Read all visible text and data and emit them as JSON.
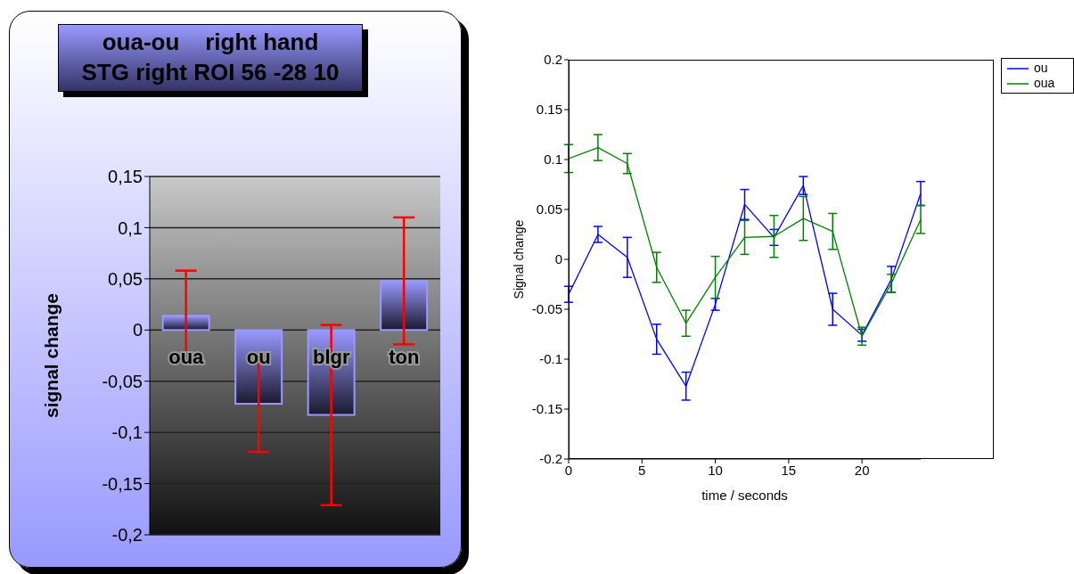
{
  "chart_data": [
    {
      "type": "bar",
      "title": "oua-ou    right hand",
      "subtitle": "STG right ROI 56 -28 10",
      "ylabel": "signal change",
      "categories": [
        "oua",
        "ou",
        "blgr",
        "ton"
      ],
      "values": [
        0.014,
        -0.072,
        -0.083,
        0.048
      ],
      "errors": [
        0.044,
        0.047,
        0.088,
        0.062
      ],
      "color": "#9999ff",
      "ylim": [
        -0.2,
        0.15
      ],
      "yticks": [
        {
          "value": -0.2,
          "label": "-0,2"
        },
        {
          "value": -0.15,
          "label": "-0,15"
        },
        {
          "value": -0.1,
          "label": "-0,1"
        },
        {
          "value": -0.05,
          "label": "-0,05"
        },
        {
          "value": 0,
          "label": "0"
        },
        {
          "value": 0.05,
          "label": "0,05"
        },
        {
          "value": 0.1,
          "label": "0,1"
        },
        {
          "value": 0.15,
          "label": "0,15"
        }
      ],
      "grid": "y",
      "legend": false
    },
    {
      "type": "line",
      "xlabel": "time / seconds",
      "ylabel": "Signal change",
      "x": [
        0,
        2,
        4,
        6,
        8,
        10,
        12,
        14,
        16,
        18,
        20,
        22,
        24
      ],
      "series": [
        {
          "name": "ou",
          "color": "#0000ff",
          "values": [
            -0.035,
            0.025,
            0.002,
            -0.08,
            -0.127,
            -0.045,
            0.055,
            0.022,
            0.074,
            -0.05,
            -0.076,
            -0.02,
            0.066
          ],
          "errors": [
            0.008,
            0.008,
            0.02,
            0.015,
            0.014,
            0.006,
            0.015,
            0.008,
            0.009,
            0.016,
            0.006,
            0.013,
            0.012
          ]
        },
        {
          "name": "oua",
          "color": "#008000",
          "values": [
            0.101,
            0.112,
            0.096,
            -0.008,
            -0.064,
            -0.018,
            0.022,
            0.023,
            0.041,
            0.028,
            -0.077,
            -0.024,
            0.04
          ],
          "errors": [
            0.014,
            0.013,
            0.01,
            0.015,
            0.013,
            0.021,
            0.017,
            0.021,
            0.022,
            0.018,
            0.009,
            0.009,
            0.014
          ]
        }
      ],
      "xlim": [
        0,
        24
      ],
      "xticks": [
        0,
        5,
        10,
        15,
        20
      ],
      "ylim": [
        -0.2,
        0.2
      ],
      "yticks": [
        -0.2,
        -0.15,
        -0.1,
        -0.05,
        0,
        0.05,
        0.1,
        0.15,
        0.2
      ],
      "grid": false,
      "legend": "top right",
      "marker": "none",
      "line_style": "solid"
    }
  ]
}
